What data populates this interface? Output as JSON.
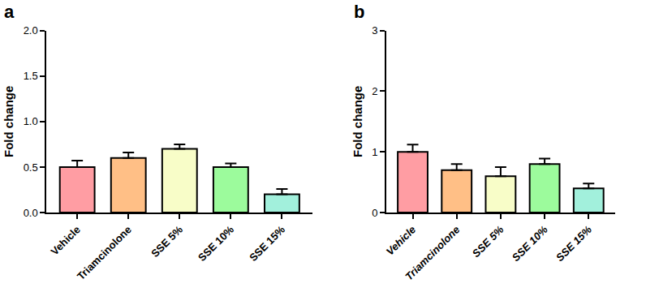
{
  "chart_data": [
    {
      "type": "bar",
      "title": "a",
      "y_label": "Fold change",
      "categories": [
        "Vehicle",
        "Triamcinolone",
        "SSE 5%",
        "SSE 10%",
        "SSE 15%"
      ],
      "values": [
        0.5,
        0.6,
        0.7,
        0.5,
        0.2
      ],
      "errors": [
        0.07,
        0.06,
        0.05,
        0.04,
        0.06
      ],
      "colors": [
        "#ff9da3",
        "#ffbf86",
        "#f8fdc8",
        "#9cfb9c",
        "#a2f0dc"
      ],
      "ylim": [
        0,
        2.0
      ],
      "yticks": [
        {
          "value": 0,
          "label": "0.0"
        },
        {
          "value": 0.5,
          "label": "0.5"
        },
        {
          "value": 1.0,
          "label": "1.0"
        },
        {
          "value": 1.5,
          "label": "1.5"
        },
        {
          "value": 2.0,
          "label": "2.0"
        }
      ],
      "grid": false
    },
    {
      "type": "bar",
      "title": "b",
      "y_label": "Fold change",
      "categories": [
        "Vehicle",
        "Triamcinolone",
        "SSE 5%",
        "SSE 10%",
        "SSE 15%"
      ],
      "values": [
        1.0,
        0.7,
        0.6,
        0.8,
        0.4
      ],
      "errors": [
        0.12,
        0.1,
        0.15,
        0.09,
        0.08
      ],
      "colors": [
        "#ff9da3",
        "#ffbf86",
        "#f8fdc8",
        "#9cfb9c",
        "#a2f0dc"
      ],
      "ylim": [
        0,
        3
      ],
      "yticks": [
        0,
        1,
        2,
        3
      ],
      "grid": false
    }
  ]
}
